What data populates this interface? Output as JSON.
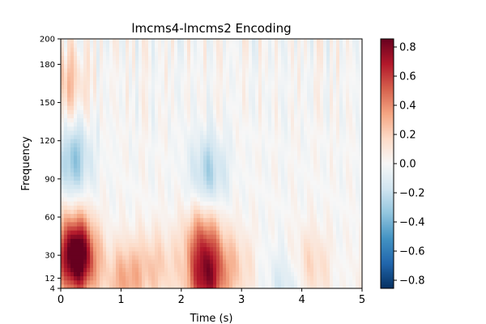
{
  "chart_data": {
    "type": "heatmap",
    "title": "lmcms4-lmcms2 Encoding",
    "xlabel": "Time (s)",
    "ylabel": "Frequency",
    "xlim": [
      0,
      5
    ],
    "ylim": [
      4,
      200
    ],
    "x_ticks": [
      0,
      1,
      2,
      3,
      4,
      5
    ],
    "x_tick_labels": [
      "0",
      "1",
      "2",
      "3",
      "4",
      "5"
    ],
    "y_ticks": [
      4,
      12,
      30,
      60,
      90,
      120,
      150,
      180,
      200
    ],
    "y_tick_labels": [
      "4",
      "12",
      "30",
      "60",
      "90",
      "120",
      "150",
      "180",
      "200"
    ],
    "colorbar": {
      "colormap": "RdBu_r",
      "vmin": -0.8,
      "vmax": 0.8,
      "ticks": [
        0.8,
        0.6,
        0.4,
        0.2,
        0.0,
        -0.2,
        -0.4,
        -0.6,
        -0.8
      ],
      "tick_labels": [
        "0.8",
        "0.6",
        "0.4",
        "0.2",
        "0.0",
        "−0.2",
        "−0.4",
        "−0.6",
        "−0.8"
      ]
    },
    "grid": false,
    "hotspots": [
      {
        "time": 0.25,
        "frequency": 32,
        "value": 0.8
      },
      {
        "time": 2.4,
        "frequency": 8,
        "value": 0.55
      },
      {
        "time": 2.35,
        "frequency": 40,
        "value": 0.4
      },
      {
        "time": 1.05,
        "frequency": 10,
        "value": 0.3
      },
      {
        "time": 0.15,
        "frequency": 165,
        "value": 0.22
      },
      {
        "time": 0.2,
        "frequency": 105,
        "value": -0.3
      },
      {
        "time": 2.45,
        "frequency": 95,
        "value": -0.25
      },
      {
        "time": 3.8,
        "frequency": 8,
        "value": -0.2
      }
    ]
  }
}
